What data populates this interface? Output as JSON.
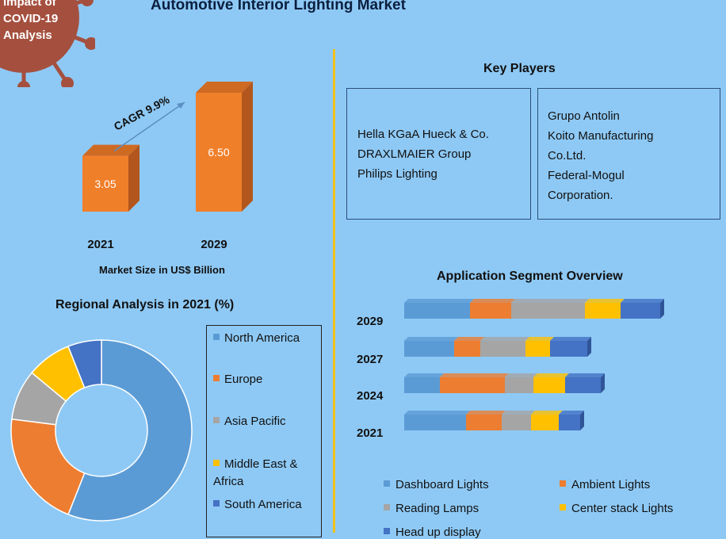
{
  "colors": {
    "background": "#8ec9f5",
    "bar_front": "#f07f2a",
    "bar_side": "#b3561d",
    "bar_top": "#cf6a23",
    "arrow": "#5b8fc4",
    "virus": "#a5503f",
    "box_border": "#2a4f78",
    "divider": "#f1c21d"
  },
  "badge": {
    "lines": [
      "Impact of",
      "COVID-19",
      "Analysis"
    ],
    "icon": "virus-icon"
  },
  "header": {
    "title": "Automotive Interior Lighting Market"
  },
  "market_size": {
    "cagr_label": "CAGR 9.9%",
    "axis_label": "Market Size in US$ Billion"
  },
  "key_players": {
    "title": "Key Players",
    "left": [
      "Hella KGaA Hueck & Co.",
      "DRAXLMAIER Group",
      "Philips Lighting"
    ],
    "right": [
      "Grupo Antolin",
      "Koito Manufacturing",
      "Co.Ltd.",
      "Federal-Mogul",
      "Corporation."
    ]
  },
  "regional": {
    "title": "Regional Analysis in 2021 (%)",
    "legend": [
      "North America",
      "Europe",
      "Asia Pacific",
      "Middle East & Africa",
      "South America"
    ]
  },
  "application": {
    "title": "Application Segment Overview",
    "legend": [
      "Dashboard Lights",
      "Ambient Lights",
      "Reading Lamps",
      "Center stack Lights",
      "Head up display"
    ]
  },
  "chart_data": [
    {
      "type": "bar",
      "title": "",
      "categories": [
        "2021",
        "2029"
      ],
      "values": [
        3.05,
        6.5
      ],
      "data_labels": [
        "3.05",
        "6.50"
      ],
      "ylabel": "Market Size in US$ Billion",
      "annotation": "CAGR 9.9%",
      "colors": [
        "#f07f2a"
      ],
      "ylim": [
        0,
        7.5
      ],
      "grid": false
    },
    {
      "type": "pie",
      "title": "Regional Analysis in 2021 (%)",
      "donut": true,
      "categories": [
        "North America",
        "Europe",
        "Asia Pacific",
        "Middle East & Africa",
        "South America"
      ],
      "values": [
        56,
        21,
        9,
        8,
        6
      ],
      "colors": [
        "#5b9bd5",
        "#ed7d31",
        "#a5a5a5",
        "#ffc000",
        "#4472c4"
      ],
      "legend": "right"
    },
    {
      "type": "bar",
      "orientation": "horizontal",
      "stacked": true,
      "title": "Application Segment Overview",
      "categories": [
        "2029",
        "2027",
        "2024",
        "2021"
      ],
      "series": [
        {
          "name": "Dashboard Lights",
          "color": "#5b9bd5",
          "values": [
            83,
            63,
            45,
            78
          ]
        },
        {
          "name": "Ambient Lights",
          "color": "#ed7d31",
          "values": [
            52,
            33,
            82,
            45
          ]
        },
        {
          "name": "Reading Lamps",
          "color": "#a5a5a5",
          "values": [
            93,
            57,
            36,
            37
          ]
        },
        {
          "name": "Center stack Lights",
          "color": "#ffc000",
          "values": [
            45,
            31,
            40,
            35
          ]
        },
        {
          "name": "Head up display",
          "color": "#4472c4",
          "values": [
            50,
            47,
            45,
            27
          ]
        }
      ],
      "xlim": [
        0,
        330
      ],
      "legend": "bottom",
      "grid": false
    }
  ]
}
